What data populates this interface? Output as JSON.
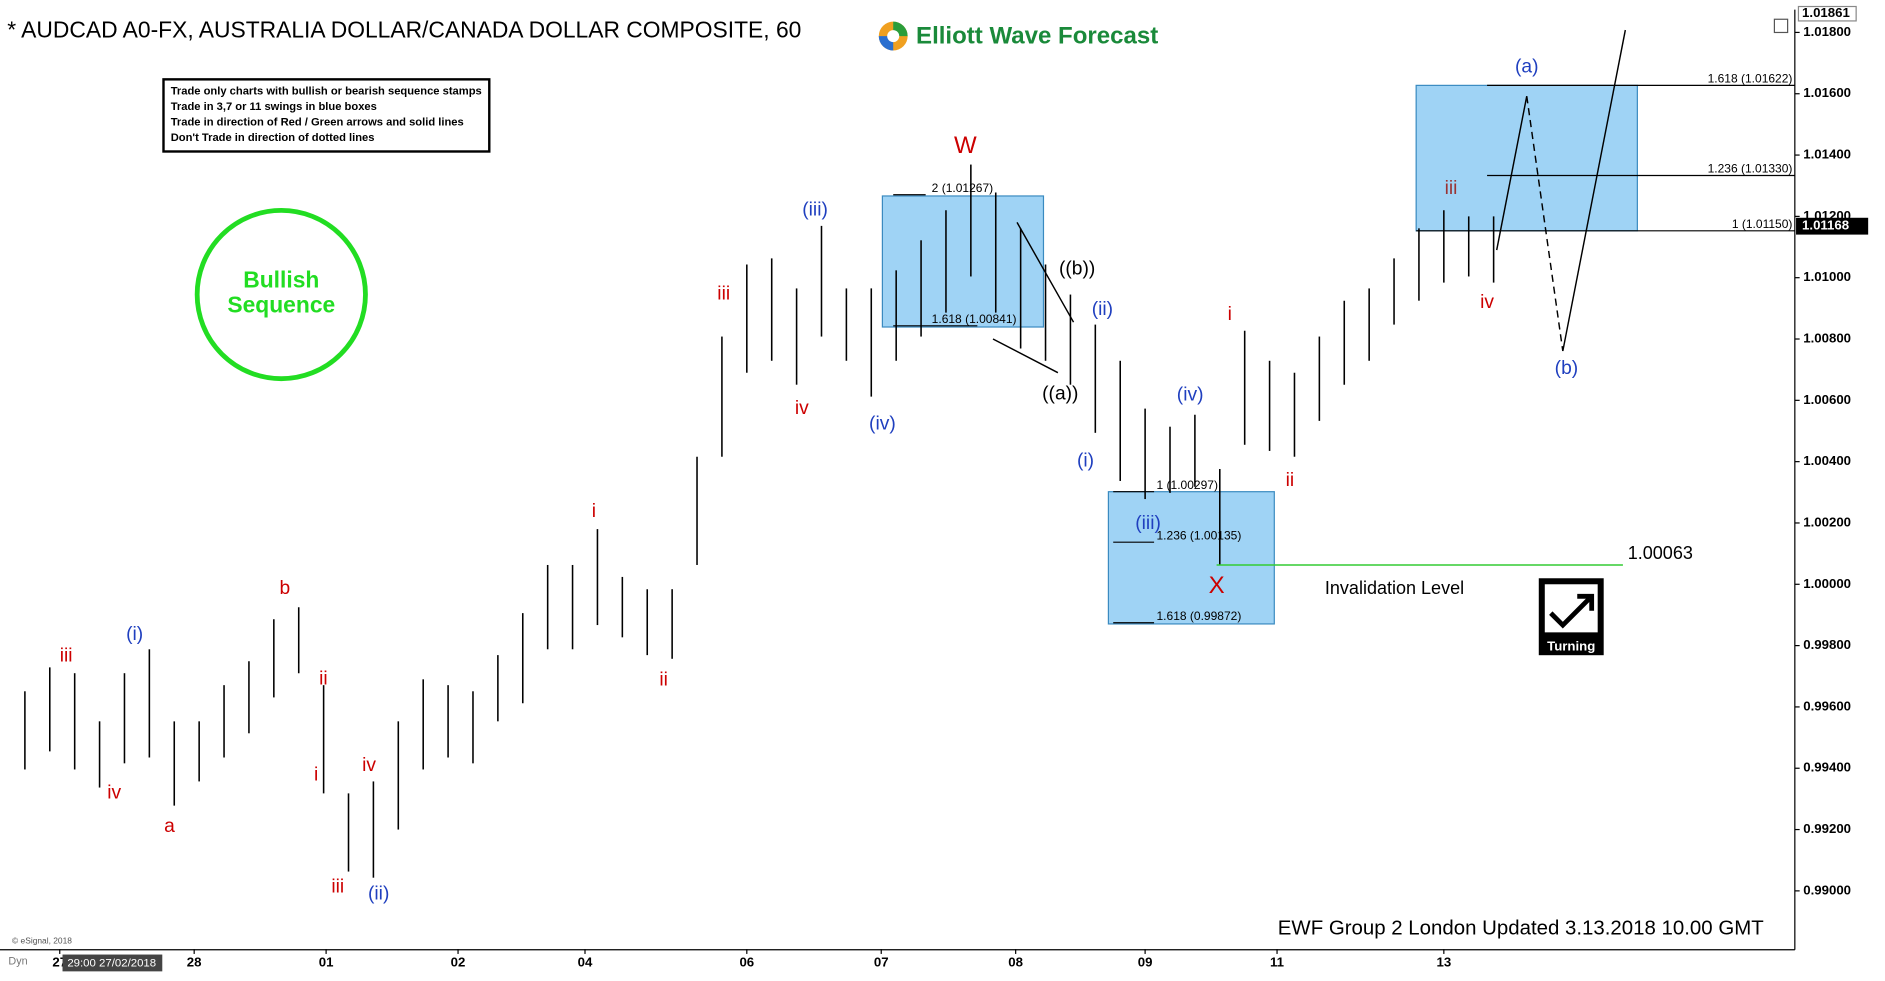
{
  "chart_data": {
    "type": "ohlc",
    "title": "* AUDCAD A0-FX, AUSTRALIA DOLLAR/CANADA DOLLAR COMPOSITE, 60",
    "brand": "Elliott Wave Forecast",
    "rules": [
      "Trade only charts with bullish or bearish sequence stamps",
      "Trade in 3,7 or 11 swings in blue boxes",
      "Trade in direction of Red / Green arrows and solid lines",
      "Don't Trade in direction of dotted lines"
    ],
    "stamp": [
      "Bullish",
      "Sequence"
    ],
    "stamp_color": "#22dd22",
    "turning": "Turning",
    "footer": "EWF Group 2 London Updated 3.13.2018 10.00 GMT",
    "copyright": "© eSignal, 2018",
    "mode": "Dyn",
    "cursor_time": "29:00 27/02/2018",
    "color": "#000000",
    "x": [
      1,
      2,
      3,
      4,
      5,
      6,
      7,
      8,
      9,
      10,
      11,
      12,
      13,
      14,
      15,
      16,
      17,
      18,
      19,
      20,
      21,
      22,
      23,
      24,
      25,
      26,
      27,
      28,
      29,
      30,
      31,
      32,
      33,
      34,
      35,
      36,
      37,
      38,
      39,
      40,
      41,
      42,
      43,
      44,
      45,
      46,
      47,
      48,
      49,
      50,
      51,
      52,
      53,
      54,
      55,
      56,
      57,
      58,
      59,
      60
    ],
    "high": [
      0.99651,
      0.99729,
      0.9971,
      0.99553,
      0.9971,
      0.99788,
      0.99553,
      0.99553,
      0.99671,
      0.99749,
      0.99886,
      0.99925,
      0.99671,
      0.99318,
      0.99357,
      0.99553,
      0.9969,
      0.99671,
      0.99651,
      0.99769,
      0.99906,
      1.00063,
      1.00063,
      1.0018,
      1.00024,
      0.99984,
      0.99984,
      1.00416,
      1.00808,
      1.01043,
      1.01063,
      1.00965,
      1.01169,
      1.00965,
      1.00965,
      1.01024,
      1.01122,
      1.0122,
      1.01369,
      1.01278,
      1.01161,
      1.01043,
      1.00945,
      1.00847,
      1.00729,
      1.00573,
      1.00514,
      1.00553,
      1.00376,
      1.00827,
      1.00729,
      1.0069,
      1.00808,
      1.00925,
      1.00965,
      1.01063,
      1.01161,
      1.0122,
      1.012,
      1.012
    ],
    "low": [
      0.99396,
      0.99455,
      0.99396,
      0.99337,
      0.99416,
      0.99435,
      0.99278,
      0.99357,
      0.99435,
      0.99514,
      0.99631,
      0.9971,
      0.99318,
      0.99063,
      0.99043,
      0.992,
      0.99396,
      0.99435,
      0.99416,
      0.99553,
      0.99612,
      0.99788,
      0.99788,
      0.99867,
      0.99827,
      0.99769,
      0.99757,
      1.00063,
      1.00416,
      1.0069,
      1.00729,
      1.00651,
      1.00808,
      1.00729,
      1.00612,
      1.00729,
      1.00808,
      1.00886,
      1.01004,
      1.00886,
      1.00769,
      1.00729,
      1.00651,
      1.00494,
      1.00337,
      1.00278,
      1.00298,
      1.00318,
      1.00063,
      1.00455,
      1.00435,
      1.00416,
      1.00533,
      1.00651,
      1.00729,
      1.00847,
      1.00925,
      1.00984,
      1.01004,
      1.00984
    ],
    "xlim": [
      0,
      72.1
    ],
    "xticks": [
      {
        "value": 2.4,
        "label": "27"
      },
      {
        "value": 7.8,
        "label": "28"
      },
      {
        "value": 13.1,
        "label": "01"
      },
      {
        "value": 18.4,
        "label": "02"
      },
      {
        "value": 23.5,
        "label": "04"
      },
      {
        "value": 30.0,
        "label": "06"
      },
      {
        "value": 35.4,
        "label": "07"
      },
      {
        "value": 40.8,
        "label": "08"
      },
      {
        "value": 46.0,
        "label": "09"
      },
      {
        "value": 51.3,
        "label": "11"
      },
      {
        "value": 58.0,
        "label": "13"
      }
    ],
    "ylim": [
      0.9881,
      1.01861
    ],
    "yticks": [
      {
        "value": 0.99,
        "label": "0.99000"
      },
      {
        "value": 0.992,
        "label": "0.99200"
      },
      {
        "value": 0.994,
        "label": "0.99400"
      },
      {
        "value": 0.996,
        "label": "0.99600"
      },
      {
        "value": 0.998,
        "label": "0.99800"
      },
      {
        "value": 1.0,
        "label": "1.00000"
      },
      {
        "value": 1.002,
        "label": "1.00200"
      },
      {
        "value": 1.004,
        "label": "1.00400"
      },
      {
        "value": 1.006,
        "label": "1.00600"
      },
      {
        "value": 1.008,
        "label": "1.00800"
      },
      {
        "value": 1.01,
        "label": "1.01000"
      },
      {
        "value": 1.012,
        "label": "1.01200"
      },
      {
        "value": 1.014,
        "label": "1.01400"
      },
      {
        "value": 1.016,
        "label": "1.01600"
      },
      {
        "value": 1.018,
        "label": "1.01800"
      }
    ],
    "last_price": 1.01168,
    "invalidation": {
      "label": "Invalidation Level",
      "value": 1.00063,
      "color": "#33cc33"
    },
    "fib_labels": [
      "2 (1.01267)",
      "1.618 (1.00841)",
      "1 (1.00297)",
      "1.236 (1.00135)",
      "1.618 (0.99872)",
      "1.618 (1.01622)",
      "1.236 (1.01330)",
      "1 (1.01150)"
    ],
    "box_color": "#9fd3f5",
    "wave_labels": [
      {
        "text": "iii",
        "color": "#cc0000"
      },
      {
        "text": "iv",
        "color": "#cc0000"
      },
      {
        "text": "a",
        "color": "#cc0000"
      },
      {
        "text": "b",
        "color": "#cc0000"
      },
      {
        "text": "ii",
        "color": "#cc0000"
      },
      {
        "text": "i",
        "color": "#cc0000"
      },
      {
        "text": "iii",
        "color": "#cc0000"
      },
      {
        "text": "iv",
        "color": "#cc0000"
      },
      {
        "text": "i",
        "color": "#cc0000"
      },
      {
        "text": "ii",
        "color": "#cc0000"
      },
      {
        "text": "iii",
        "color": "#cc0000"
      },
      {
        "text": "iv",
        "color": "#cc0000"
      },
      {
        "text": "W",
        "color": "#cc0000"
      },
      {
        "text": "X",
        "color": "#cc0000"
      },
      {
        "text": "i",
        "color": "#cc0000"
      },
      {
        "text": "ii",
        "color": "#cc0000"
      },
      {
        "text": "iii",
        "color": "#993333"
      },
      {
        "text": "iv",
        "color": "#cc0000"
      },
      {
        "text": "(i)",
        "color": "#1f3fbf"
      },
      {
        "text": "(ii)",
        "color": "#1f3fbf"
      },
      {
        "text": "(iii)",
        "color": "#1f3fbf"
      },
      {
        "text": "(iv)",
        "color": "#1f3fbf"
      },
      {
        "text": "(i)",
        "color": "#1f3fbf"
      },
      {
        "text": "(ii)",
        "color": "#1f3fbf"
      },
      {
        "text": "(iii)",
        "color": "#1f3fbf"
      },
      {
        "text": "(iv)",
        "color": "#1f3fbf"
      },
      {
        "text": "(a)",
        "color": "#1f3fbf"
      },
      {
        "text": "(b)",
        "color": "#1f3fbf"
      },
      {
        "text": "((a))",
        "color": "#000000"
      },
      {
        "text": "((b))",
        "color": "#000000"
      }
    ]
  }
}
